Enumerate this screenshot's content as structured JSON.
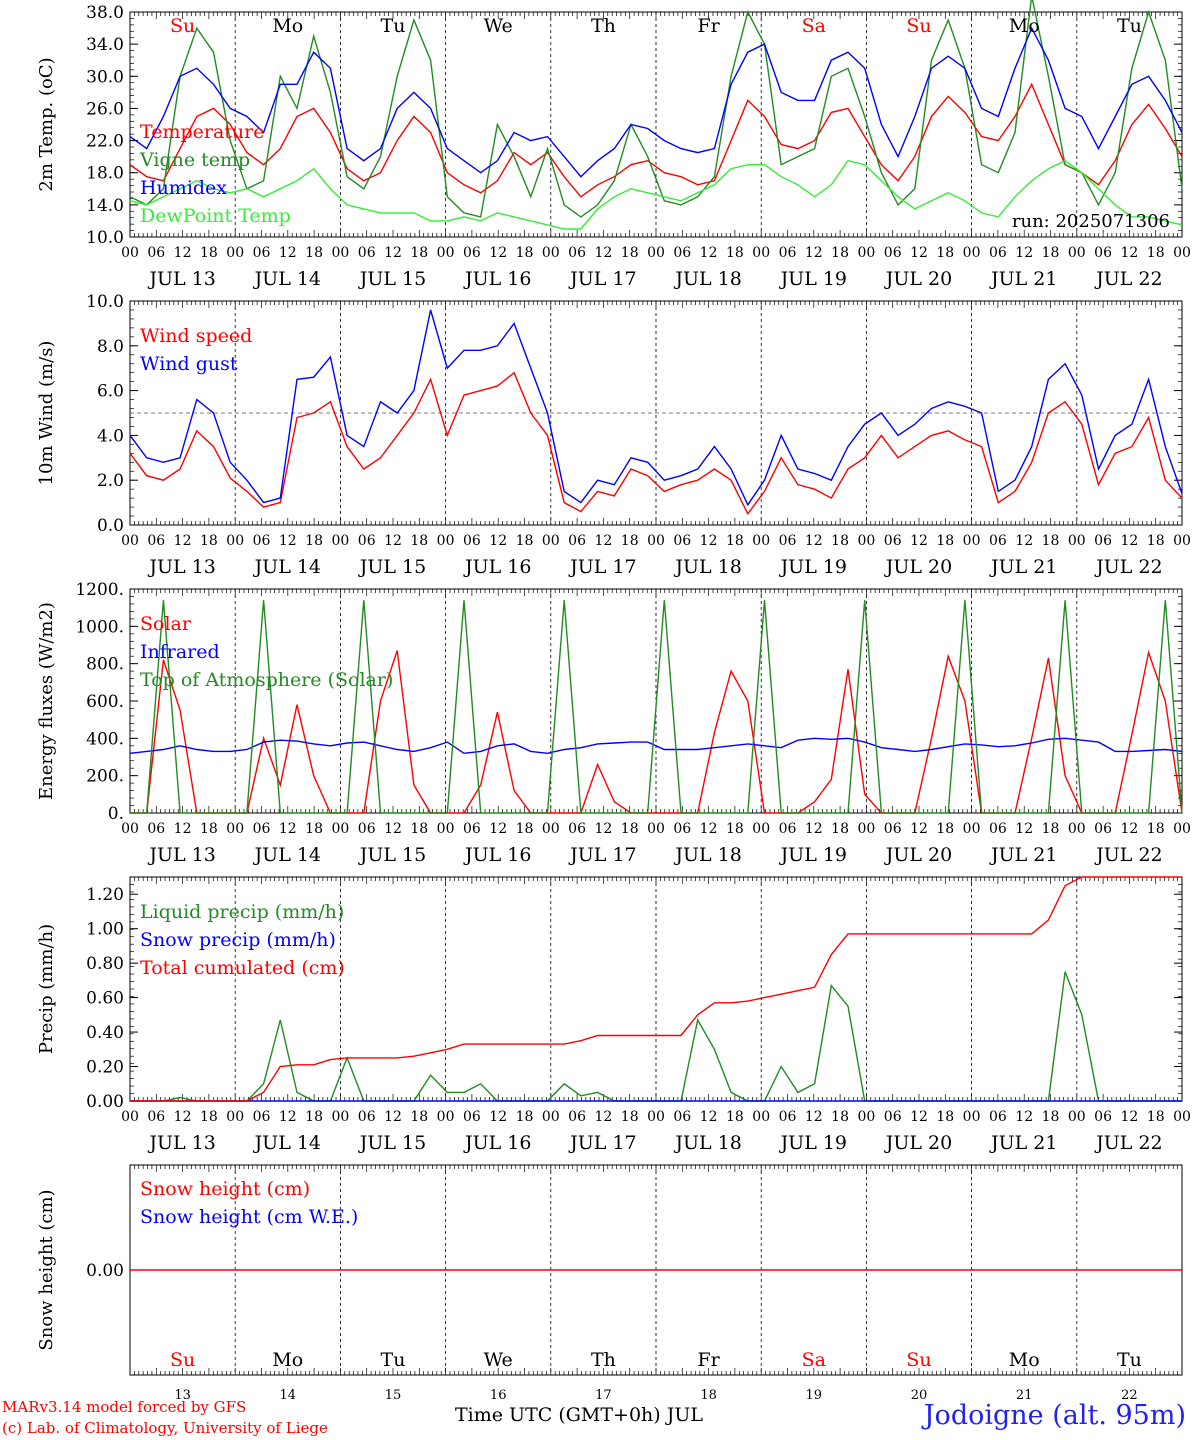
{
  "footer": {
    "credit_line1": "MARv3.14 model forced by GFS",
    "credit_line2": "(c) Lab. of Climatology, University of Liege",
    "xaxis_title": "Time UTC (GMT+0h) JUL",
    "station": "Jodoigne (alt. 95m)"
  },
  "days": [
    "13",
    "14",
    "15",
    "16",
    "17",
    "18",
    "19",
    "20",
    "21",
    "22"
  ],
  "day_labels": [
    "JUL 13",
    "JUL 14",
    "JUL 15",
    "JUL 16",
    "JUL 17",
    "JUL 18",
    "JUL 19",
    "JUL 20",
    "JUL 21",
    "JUL 22"
  ],
  "weekdays": [
    {
      "name": "Su",
      "color": "#ff0000"
    },
    {
      "name": "Mo",
      "color": "#000000"
    },
    {
      "name": "Tu",
      "color": "#000000"
    },
    {
      "name": "We",
      "color": "#000000"
    },
    {
      "name": "Th",
      "color": "#000000"
    },
    {
      "name": "Fr",
      "color": "#000000"
    },
    {
      "name": "Sa",
      "color": "#ff0000"
    },
    {
      "name": "Su",
      "color": "#ff0000"
    },
    {
      "name": "Mo",
      "color": "#000000"
    },
    {
      "name": "Tu",
      "color": "#000000"
    }
  ],
  "hour_ticks": [
    "00",
    "06",
    "12",
    "18"
  ],
  "chart_data": [
    {
      "type": "line",
      "ylabel": "2m Temp. (oC)",
      "ylim": [
        10,
        38
      ],
      "yticks": [
        "10.0",
        "14.0",
        "18.0",
        "22.0",
        "26.0",
        "30.0",
        "34.0",
        "38.0"
      ],
      "run_label": "run: 2025071306",
      "series": [
        {
          "name": "Temperature",
          "color": "#ff0000",
          "values": [
            19,
            17.5,
            17,
            21,
            25,
            26,
            24,
            20.5,
            19,
            21,
            25,
            26,
            23,
            18.5,
            17,
            18,
            22,
            25,
            23,
            18,
            16.5,
            15.5,
            17,
            20.5,
            19,
            20.5,
            17.5,
            15,
            16.5,
            17.5,
            19,
            19.5,
            18,
            17.5,
            16.5,
            17,
            22,
            27,
            25,
            21.5,
            21,
            22,
            25.5,
            26,
            22.5,
            19,
            17,
            20,
            25,
            27.5,
            25.5,
            22.5,
            22,
            25,
            29,
            24,
            19,
            18,
            16.5,
            19.5,
            24,
            26.5,
            23.5,
            20
          ]
        },
        {
          "name": "Vigne temp",
          "color": "#228b22",
          "values": [
            15,
            14,
            16,
            30,
            36,
            33,
            22,
            16,
            17,
            30,
            26,
            35,
            28,
            17.5,
            16,
            20,
            30,
            37,
            32,
            15,
            13,
            12.5,
            24,
            20,
            15,
            21,
            14,
            12.5,
            14,
            17,
            24,
            20,
            14.5,
            14,
            15,
            17.5,
            30,
            38,
            34,
            19,
            20,
            21,
            30,
            31,
            25,
            18,
            14,
            16,
            32,
            37,
            31,
            19,
            18,
            23,
            40,
            30,
            19,
            18,
            14,
            18,
            31,
            38,
            32,
            16
          ]
        },
        {
          "name": "Humidex",
          "color": "#0000ff",
          "values": [
            22.5,
            21,
            25,
            30,
            31,
            29,
            26,
            25,
            23,
            29,
            29,
            33,
            31,
            21,
            19.5,
            21,
            26,
            28,
            26,
            21,
            19.5,
            18,
            19.5,
            23,
            22,
            22.5,
            20,
            17.5,
            19.5,
            21,
            24,
            23.5,
            22,
            21,
            20.5,
            21,
            29,
            33,
            34,
            28,
            27,
            27,
            32,
            33,
            31,
            24,
            20,
            25,
            31,
            32.5,
            31,
            26,
            25,
            31,
            36,
            32,
            26,
            25,
            21,
            25,
            29,
            30,
            27,
            23
          ]
        },
        {
          "name": "DewPoint Temp",
          "color": "#33ee33",
          "values": [
            14.5,
            14,
            15,
            16,
            17,
            16,
            15.5,
            16,
            15,
            16,
            17,
            18.5,
            16,
            14,
            13.5,
            13,
            13,
            13,
            12,
            12,
            12.5,
            12,
            13,
            12.5,
            12,
            11.5,
            11,
            11,
            13.5,
            15,
            16,
            15.5,
            15,
            14.5,
            15.5,
            16.5,
            18.5,
            19,
            19,
            17.5,
            16.5,
            15,
            16.5,
            19.5,
            19,
            17,
            15,
            13.5,
            14.5,
            15.5,
            14.5,
            13,
            12.5,
            15,
            17,
            18.5,
            19.5,
            18,
            16,
            14,
            12.5,
            12.5,
            12,
            11.5
          ]
        }
      ]
    },
    {
      "type": "line",
      "ylabel": "10m Wind (m/s)",
      "ylim": [
        0,
        10
      ],
      "yticks": [
        "0.0",
        "2.0",
        "4.0",
        "6.0",
        "8.0",
        "10.0"
      ],
      "reference_line": 5,
      "series": [
        {
          "name": "Wind speed",
          "color": "#ff0000",
          "values": [
            3.2,
            2.2,
            2,
            2.5,
            4.2,
            3.5,
            2.1,
            1.5,
            0.8,
            1,
            4.8,
            5,
            5.5,
            3.5,
            2.5,
            3,
            4,
            5,
            6.5,
            4,
            5.8,
            6,
            6.2,
            6.8,
            5,
            4,
            1,
            0.6,
            1.5,
            1.3,
            2.5,
            2.2,
            1.5,
            1.8,
            2,
            2.5,
            2,
            0.5,
            1.5,
            3,
            1.8,
            1.6,
            1.2,
            2.5,
            3,
            4,
            3,
            3.5,
            4,
            4.2,
            3.8,
            3.5,
            1,
            1.5,
            2.8,
            5,
            5.5,
            4.5,
            1.8,
            3.2,
            3.5,
            4.8,
            2,
            1.2
          ]
        },
        {
          "name": "Wind gust",
          "color": "#0000ff",
          "values": [
            4,
            3,
            2.8,
            3,
            5.6,
            5,
            2.8,
            2,
            1,
            1.2,
            6.5,
            6.6,
            7.5,
            4,
            3.5,
            5.5,
            5,
            6,
            9.6,
            7,
            7.8,
            7.8,
            8,
            9,
            7,
            5,
            1.5,
            1,
            2,
            1.8,
            3,
            2.8,
            2,
            2.2,
            2.5,
            3.5,
            2.5,
            0.9,
            2,
            4,
            2.5,
            2.3,
            2,
            3.5,
            4.5,
            5,
            4,
            4.5,
            5.2,
            5.5,
            5.3,
            5,
            1.5,
            2,
            3.5,
            6.5,
            7.2,
            5.8,
            2.5,
            4,
            4.5,
            6.5,
            3.5,
            1.4
          ]
        }
      ]
    },
    {
      "type": "line",
      "ylabel": "Energy fluxes (W/m2)",
      "ylim": [
        0,
        1200
      ],
      "yticks": [
        "0.",
        "200.",
        "400.",
        "600.",
        "800.",
        "1000.",
        "1200."
      ],
      "series": [
        {
          "name": "Solar",
          "color": "#ff0000",
          "values": [
            0,
            0,
            820,
            550,
            0,
            0,
            0,
            0,
            400,
            150,
            580,
            200,
            0,
            0,
            0,
            600,
            870,
            150,
            0,
            0,
            0,
            150,
            540,
            120,
            0,
            0,
            0,
            0,
            260,
            60,
            0,
            0,
            0,
            0,
            0,
            430,
            760,
            600,
            0,
            0,
            0,
            60,
            180,
            770,
            100,
            0,
            0,
            0,
            400,
            840,
            600,
            0,
            0,
            0,
            400,
            830,
            200,
            0,
            0,
            0,
            420,
            860,
            600,
            0
          ]
        },
        {
          "name": "Infrared",
          "color": "#0000ff",
          "values": [
            320,
            330,
            340,
            360,
            340,
            330,
            330,
            340,
            380,
            390,
            385,
            370,
            360,
            375,
            380,
            360,
            340,
            330,
            350,
            380,
            320,
            330,
            360,
            370,
            330,
            320,
            340,
            350,
            370,
            375,
            380,
            380,
            340,
            340,
            340,
            350,
            360,
            370,
            360,
            350,
            390,
            400,
            395,
            400,
            380,
            350,
            340,
            330,
            340,
            355,
            370,
            365,
            355,
            360,
            375,
            395,
            400,
            390,
            380,
            330,
            330,
            335,
            340,
            330
          ]
        },
        {
          "name": "Top of Atmosphere (Solar)",
          "color": "#228b22",
          "values": [
            0,
            0,
            1140,
            0,
            0,
            0,
            0,
            0,
            1140,
            0,
            0,
            0,
            0,
            0,
            1140,
            0,
            0,
            0,
            0,
            0,
            1140,
            0,
            0,
            0,
            0,
            0,
            1140,
            0,
            0,
            0,
            0,
            0,
            1140,
            0,
            0,
            0,
            0,
            0,
            1140,
            0,
            0,
            0,
            0,
            0,
            1140,
            0,
            0,
            0,
            0,
            0,
            1140,
            0,
            0,
            0,
            0,
            0,
            1140,
            0,
            0,
            0,
            0,
            0,
            1140,
            0
          ]
        }
      ]
    },
    {
      "type": "line",
      "ylabel": "Precip (mm/h)",
      "ylim": [
        0,
        1.3
      ],
      "yticks": [
        "0.00",
        "0.20",
        "0.40",
        "0.60",
        "0.80",
        "1.00",
        "1.20"
      ],
      "series": [
        {
          "name": "Liquid precip (mm/h)",
          "color": "#228b22",
          "values": [
            0,
            0,
            0,
            0.02,
            0,
            0,
            0,
            0,
            0.1,
            0.47,
            0.05,
            0,
            0,
            0.25,
            0,
            0,
            0,
            0,
            0.15,
            0.05,
            0.05,
            0.1,
            0,
            0,
            0,
            0,
            0.1,
            0.03,
            0.05,
            0,
            0,
            0,
            0,
            0,
            0.47,
            0.3,
            0.05,
            0,
            0,
            0.2,
            0.05,
            0.1,
            0.67,
            0.55,
            0,
            0,
            0,
            0,
            0,
            0,
            0,
            0,
            0,
            0,
            0,
            0,
            0.75,
            0.5,
            0,
            0,
            0,
            0,
            0,
            0
          ]
        },
        {
          "name": "Snow precip (mm/h)",
          "color": "#0000ff",
          "values": [
            0,
            0,
            0,
            0,
            0,
            0,
            0,
            0,
            0,
            0,
            0,
            0,
            0,
            0,
            0,
            0,
            0,
            0,
            0,
            0,
            0,
            0,
            0,
            0,
            0,
            0,
            0,
            0,
            0,
            0,
            0,
            0,
            0,
            0,
            0,
            0,
            0,
            0,
            0,
            0,
            0,
            0,
            0,
            0,
            0,
            0,
            0,
            0,
            0,
            0,
            0,
            0,
            0,
            0,
            0,
            0,
            0,
            0,
            0,
            0,
            0,
            0,
            0,
            0
          ]
        },
        {
          "name": "Total cumulated (cm)",
          "color": "#ff0000",
          "values": [
            0,
            0,
            0,
            0,
            0,
            0,
            0,
            0,
            0.05,
            0.2,
            0.21,
            0.21,
            0.24,
            0.25,
            0.25,
            0.25,
            0.25,
            0.26,
            0.28,
            0.3,
            0.33,
            0.33,
            0.33,
            0.33,
            0.33,
            0.33,
            0.33,
            0.35,
            0.38,
            0.38,
            0.38,
            0.38,
            0.38,
            0.38,
            0.5,
            0.57,
            0.57,
            0.58,
            0.6,
            0.62,
            0.64,
            0.66,
            0.85,
            0.97,
            0.97,
            0.97,
            0.97,
            0.97,
            0.97,
            0.97,
            0.97,
            0.97,
            0.97,
            0.97,
            0.97,
            1.05,
            1.25,
            1.3,
            1.3,
            1.3,
            1.3,
            1.3,
            1.3,
            1.3
          ]
        }
      ]
    },
    {
      "type": "line",
      "ylabel": "Snow height (cm)",
      "ylim": [
        -1,
        1
      ],
      "yticks": [
        "0.00"
      ],
      "series": [
        {
          "name": "Snow height (cm)",
          "color": "#ff0000",
          "values": [
            0,
            0,
            0,
            0,
            0,
            0,
            0,
            0,
            0,
            0,
            0,
            0,
            0,
            0,
            0,
            0,
            0,
            0,
            0,
            0,
            0,
            0,
            0,
            0,
            0,
            0,
            0,
            0,
            0,
            0,
            0,
            0,
            0,
            0,
            0,
            0,
            0,
            0,
            0,
            0,
            0,
            0,
            0,
            0,
            0,
            0,
            0,
            0,
            0,
            0,
            0,
            0,
            0,
            0,
            0,
            0,
            0,
            0,
            0,
            0,
            0,
            0,
            0,
            0
          ]
        },
        {
          "name": "Snow height (cm W.E.)",
          "color": "#0000ff",
          "values": []
        }
      ]
    }
  ]
}
